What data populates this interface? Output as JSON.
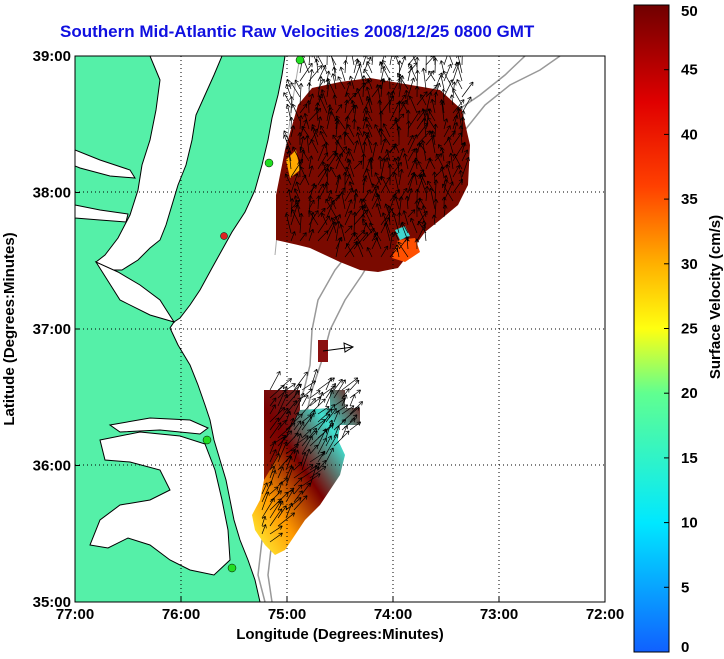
{
  "chart_data": {
    "type": "heatmap",
    "title": "Southern Mid-Atlantic Raw Velocities 2008/12/25 0800 GMT",
    "xlabel": "Longitude (Degrees:Minutes)",
    "ylabel": "Latitude (Degrees:Minutes)",
    "x_ticks": [
      "77:00",
      "76:00",
      "75:00",
      "74:00",
      "73:00",
      "72:00"
    ],
    "x_values": [
      -77,
      -76,
      -75,
      -74,
      -73,
      -72
    ],
    "y_ticks": [
      "39:00",
      "38:00",
      "37:00",
      "36:00",
      "35:00"
    ],
    "y_values": [
      39,
      38,
      37,
      36,
      35
    ],
    "xlim": [
      -77,
      -72
    ],
    "ylim": [
      35,
      39
    ],
    "grid": true,
    "colorbar": {
      "label": "Surface Velocity (cm/s)",
      "ticks": [
        50,
        45,
        40,
        35,
        30,
        25,
        20,
        15,
        10,
        5,
        0
      ],
      "range": [
        0,
        50
      ]
    },
    "colors": {
      "land": "#55f0a8",
      "title": "#1010e0",
      "station": "#22dd22",
      "station_offline": "#dd2222"
    }
  }
}
